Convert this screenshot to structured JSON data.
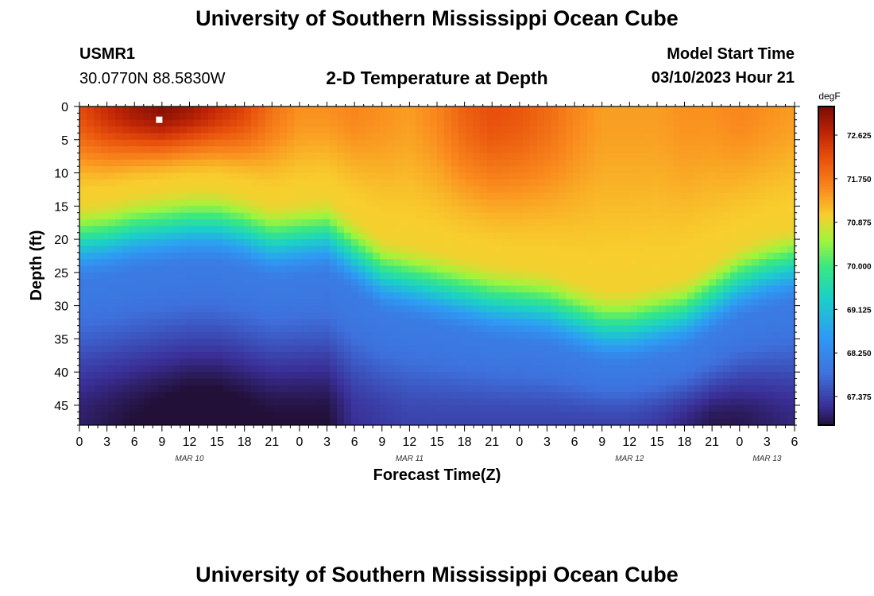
{
  "header": {
    "title": "University of Southern Mississippi Ocean Cube",
    "station_id": "USMR1",
    "coordinates": "30.0770N  88.5830W",
    "subtitle": "2-D Temperature at Depth",
    "model_start_label": "Model Start Time",
    "model_start_value": "03/10/2023 Hour 21"
  },
  "footer": {
    "title": "University of Southern Mississippi Ocean Cube"
  },
  "chart_data": {
    "type": "heatmap",
    "title": "2-D Temperature at Depth",
    "xlabel": "Forecast Time(Z)",
    "ylabel": "Depth (ft)",
    "x_ticks": [
      "0",
      "3",
      "6",
      "9",
      "12",
      "15",
      "18",
      "21",
      "0",
      "3",
      "6",
      "9",
      "12",
      "15",
      "18",
      "21",
      "0",
      "3",
      "6",
      "9",
      "12",
      "15",
      "18",
      "21",
      "0",
      "3",
      "6"
    ],
    "x_hours_range": [
      0,
      78
    ],
    "date_labels": [
      {
        "label": "MAR 10",
        "hour": 12
      },
      {
        "label": "MAR 11",
        "hour": 36
      },
      {
        "label": "MAR 12",
        "hour": 60
      },
      {
        "label": "MAR 13",
        "hour": 75
      }
    ],
    "y_ticks": [
      0,
      5,
      10,
      15,
      20,
      25,
      30,
      35,
      40,
      45
    ],
    "ylim": [
      0,
      48
    ],
    "colorbar": {
      "unit": "degF",
      "range": [
        66.8,
        73.2
      ],
      "tick_values": [
        72.625,
        71.75,
        70.875,
        70.0,
        69.125,
        68.25,
        67.375
      ],
      "tick_labels": [
        "72.625",
        "71.750",
        "70.875",
        "70.000",
        "69.125",
        "68.250",
        "67.375"
      ]
    },
    "marker": {
      "hour": 8.7,
      "depth": 2
    },
    "thermocline": {
      "hours": [
        0,
        3,
        6,
        9,
        12,
        15,
        18,
        21,
        24,
        27,
        30,
        33,
        36,
        39,
        42,
        45,
        48,
        51,
        54,
        57,
        60,
        63,
        66,
        69,
        72,
        75,
        78
      ],
      "depth_ft": [
        18,
        17.5,
        16.5,
        16,
        15.5,
        15.5,
        16.5,
        18,
        17.5,
        17,
        20,
        23,
        24,
        25,
        26,
        27,
        27.5,
        28,
        29.5,
        31,
        31,
        30,
        29,
        26.5,
        24,
        22.5,
        21.5
      ]
    },
    "surface_temp_degF": {
      "hours": [
        0,
        3,
        6,
        9,
        12,
        15,
        18,
        21,
        24,
        27,
        30,
        33,
        36,
        39,
        42,
        45,
        48,
        51,
        54,
        57,
        60,
        63,
        66,
        69,
        72,
        75,
        78
      ],
      "values": [
        72.2,
        72.6,
        72.9,
        73.1,
        72.9,
        72.6,
        72.3,
        71.8,
        71.5,
        71.5,
        71.6,
        71.5,
        71.4,
        71.6,
        72.0,
        72.2,
        72.1,
        71.9,
        71.6,
        71.4,
        71.4,
        71.4,
        71.5,
        71.5,
        71.6,
        71.5,
        71.4
      ]
    },
    "bottom_temp_degF": {
      "hours": [
        0,
        3,
        6,
        9,
        12,
        15,
        18,
        21,
        24,
        27,
        30,
        33,
        36,
        39,
        42,
        45,
        48,
        51,
        54,
        57,
        60,
        63,
        66,
        69,
        72,
        75,
        78
      ],
      "values": [
        67.0,
        66.9,
        66.8,
        66.7,
        66.6,
        66.6,
        66.7,
        66.8,
        66.8,
        66.8,
        67.2,
        67.3,
        67.4,
        67.4,
        67.4,
        67.4,
        67.4,
        67.4,
        67.4,
        67.4,
        67.4,
        67.3,
        67.1,
        66.9,
        66.9,
        67.0,
        67.1
      ]
    }
  }
}
